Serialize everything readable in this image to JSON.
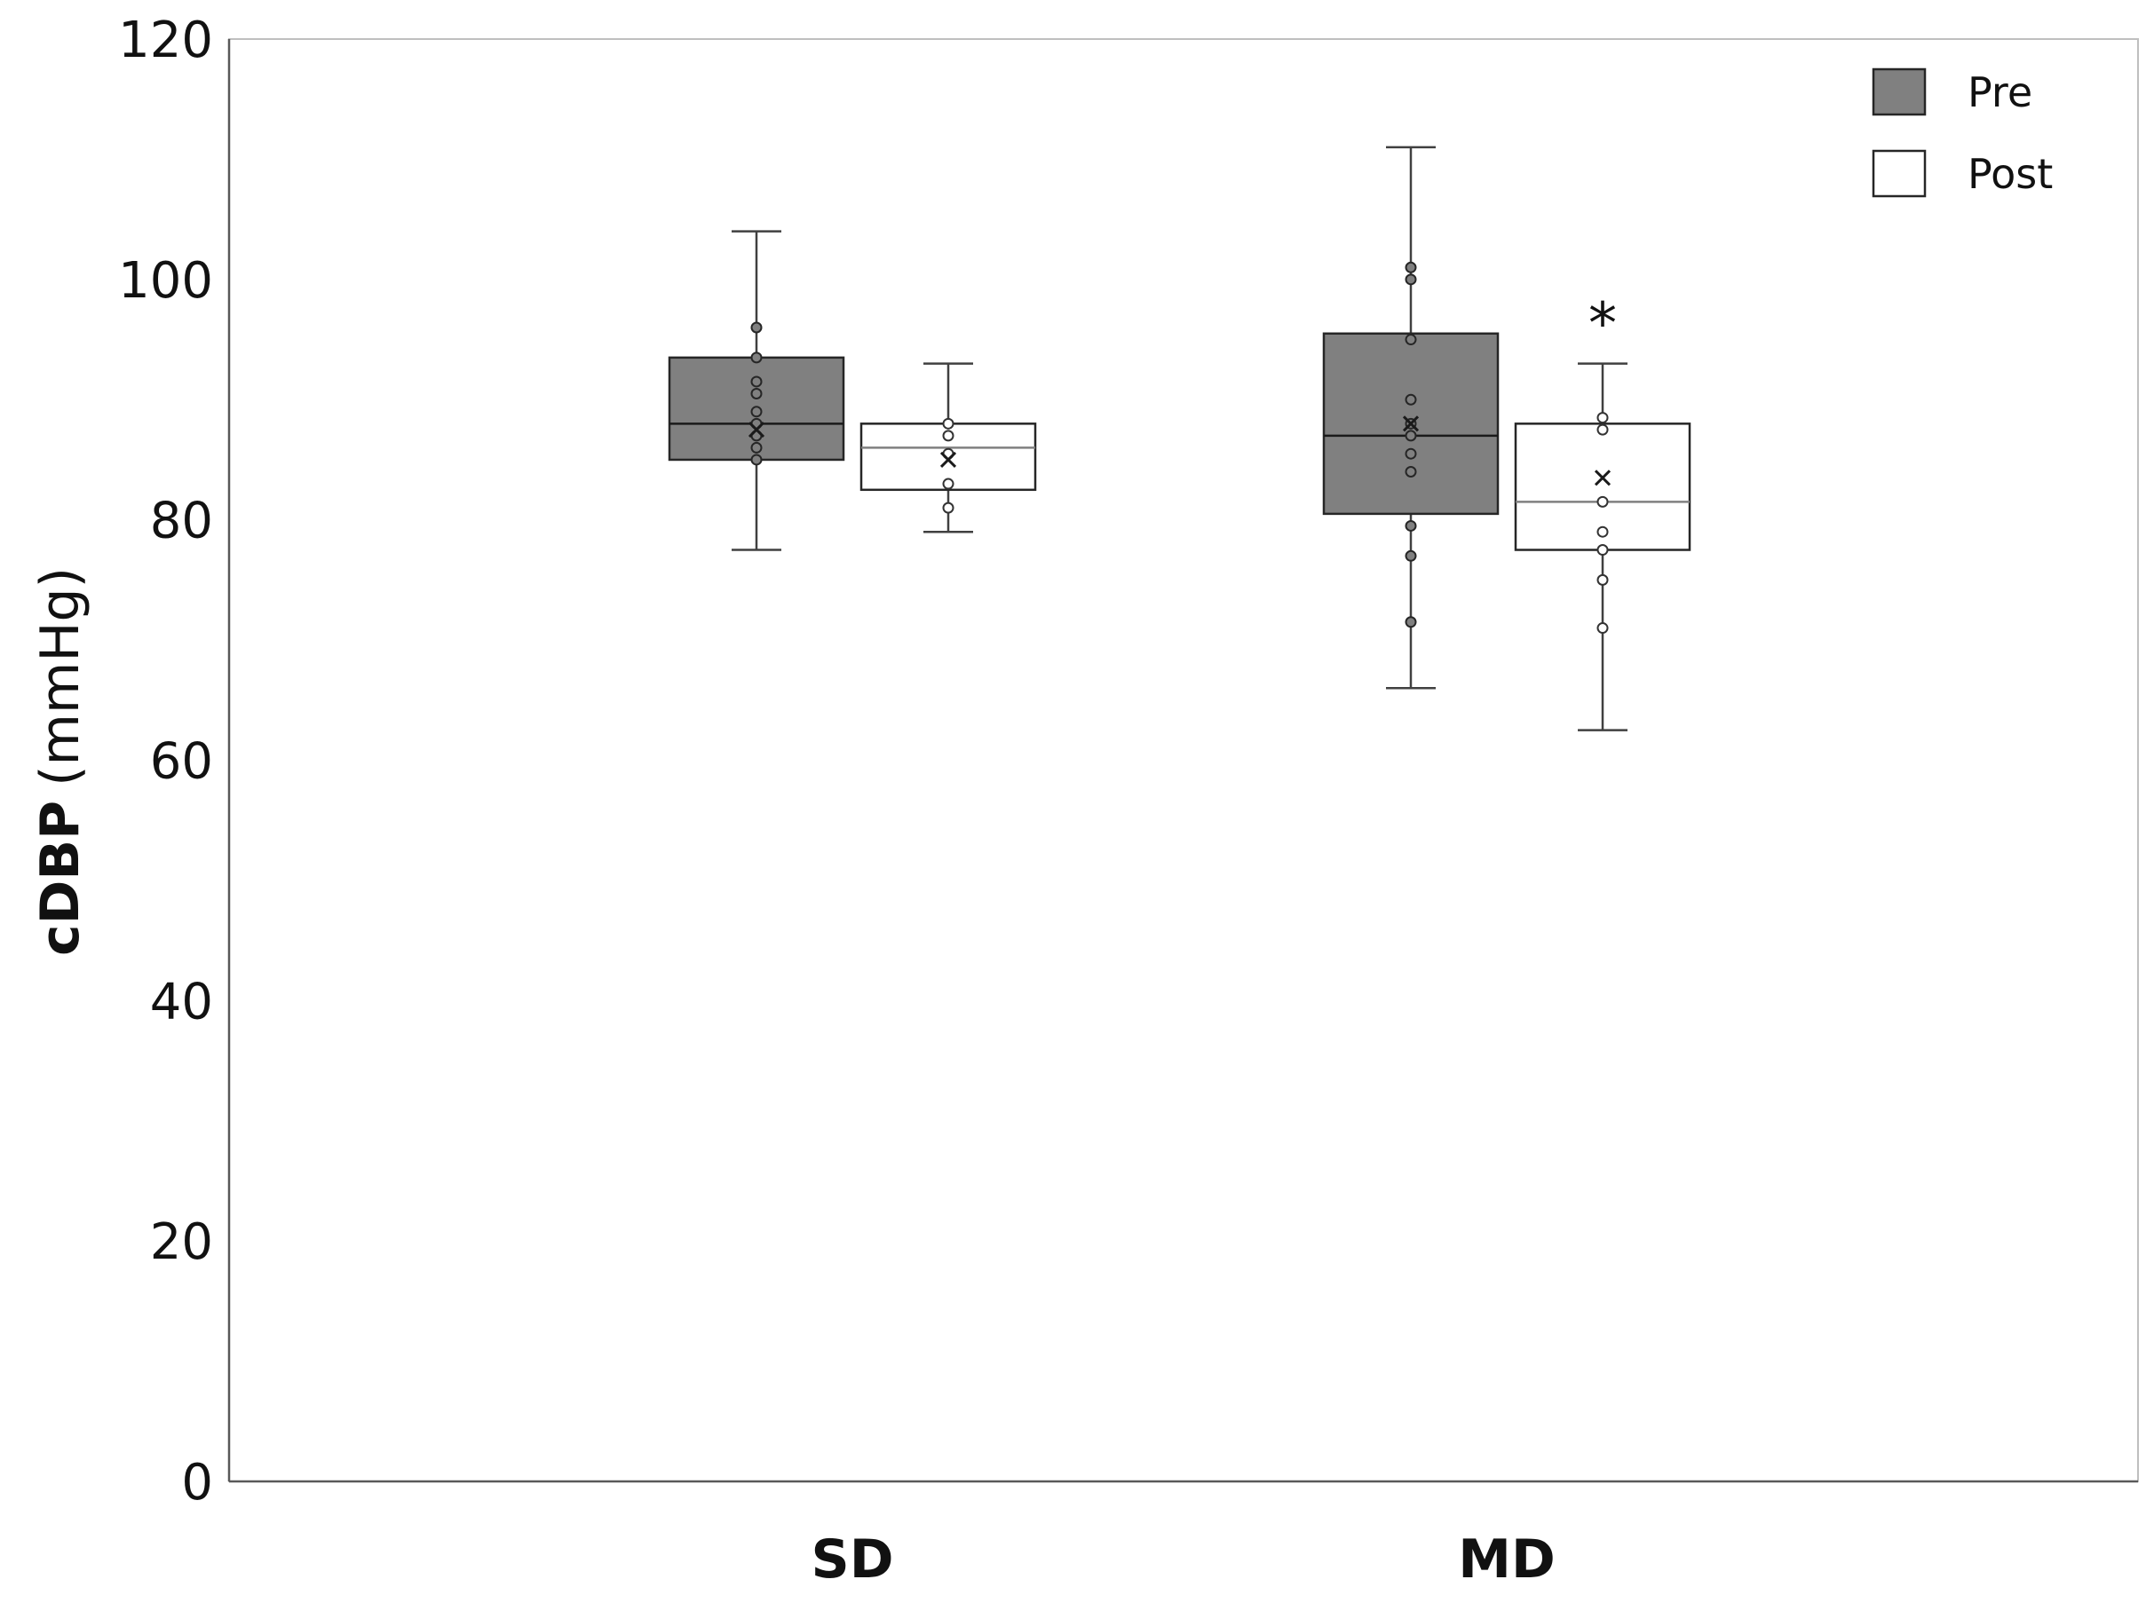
{
  "chart_data": {
    "type": "box",
    "title": "",
    "ylabel_bold": "cDBP",
    "ylabel_unit": "(mmHg)",
    "xlabel": "",
    "ylim": [
      0,
      120
    ],
    "yticks": [
      0,
      20,
      40,
      60,
      80,
      100,
      120
    ],
    "categories": [
      "SD",
      "MD"
    ],
    "legend": {
      "placement": "top-right"
    },
    "series": [
      {
        "name": "Pre",
        "fill": "#808080",
        "boxes": [
          {
            "category": "SD",
            "min": 77.5,
            "q1": 85,
            "median": 88,
            "q3": 93.5,
            "max": 104,
            "mean": 87.5,
            "points": [
              96,
              93.5,
              91.5,
              90.5,
              89,
              88,
              87,
              86,
              85
            ]
          },
          {
            "category": "MD",
            "min": 66,
            "q1": 80.5,
            "median": 87,
            "q3": 95.5,
            "max": 111,
            "mean": 88,
            "points": [
              101,
              100,
              95,
              90,
              88,
              87,
              85.5,
              84,
              79.5,
              77,
              71.5
            ]
          }
        ]
      },
      {
        "name": "Post",
        "fill": "#ffffff",
        "boxes": [
          {
            "category": "SD",
            "min": 79,
            "q1": 82.5,
            "median": 86,
            "q3": 88,
            "max": 93,
            "mean": 85,
            "points": [
              88,
              87,
              85.5,
              83,
              81
            ]
          },
          {
            "category": "MD",
            "min": 62.5,
            "q1": 77.5,
            "median": 81.5,
            "q3": 88,
            "max": 93,
            "mean": 83.5,
            "points": [
              88.5,
              87.5,
              81.5,
              79,
              77.5,
              75,
              71
            ]
          }
        ]
      }
    ],
    "annotations": [
      {
        "text": "*",
        "category": "MD",
        "series": "Post",
        "y": 97.5
      }
    ]
  }
}
